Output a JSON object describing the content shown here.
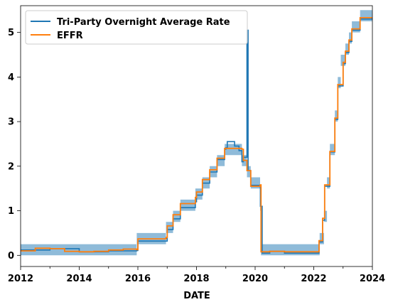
{
  "chart_data": {
    "type": "line",
    "title": "",
    "xlabel": "DATE",
    "ylabel": "",
    "xlim": [
      2012,
      2024
    ],
    "ylim": [
      -0.25,
      5.6
    ],
    "x_ticks": [
      2012,
      2014,
      2016,
      2018,
      2020,
      2022,
      2024
    ],
    "x_tick_labels": [
      "2012",
      "2014",
      "2016",
      "2018",
      "2020",
      "2022",
      "2024"
    ],
    "y_ticks": [
      0,
      1,
      2,
      3,
      4,
      5
    ],
    "y_tick_labels": [
      "0",
      "1",
      "2",
      "3",
      "4",
      "5"
    ],
    "grid": false,
    "legend_position": "top-left",
    "series": [
      {
        "name": "Tri-Party Overnight Average Rate",
        "color": "#1f77b4",
        "x": [
          2012.0,
          2013.0,
          2014.0,
          2015.0,
          2015.96,
          2016.0,
          2016.96,
          2017.0,
          2017.2,
          2017.45,
          2017.96,
          2018.0,
          2018.2,
          2018.45,
          2018.7,
          2018.96,
          2019.0,
          2019.05,
          2019.3,
          2019.45,
          2019.55,
          2019.6,
          2019.72,
          2019.76,
          2019.85,
          2020.17,
          2020.18,
          2020.24,
          2020.5,
          2021.0,
          2021.5,
          2022.15,
          2022.18,
          2022.3,
          2022.37,
          2022.45,
          2022.55,
          2022.62,
          2022.72,
          2022.82,
          2022.92,
          2023.0,
          2023.08,
          2023.2,
          2023.3,
          2023.4,
          2023.58,
          2023.99
        ],
        "y": [
          0.12,
          0.15,
          0.08,
          0.1,
          0.11,
          0.32,
          0.32,
          0.58,
          0.82,
          1.07,
          1.2,
          1.35,
          1.62,
          1.87,
          2.15,
          2.38,
          2.41,
          2.55,
          2.45,
          2.35,
          2.1,
          2.2,
          5.05,
          1.9,
          1.57,
          1.57,
          1.1,
          0.05,
          0.09,
          0.05,
          0.05,
          0.05,
          0.3,
          0.79,
          1.55,
          1.55,
          2.32,
          2.32,
          3.05,
          3.8,
          3.8,
          4.3,
          4.55,
          4.8,
          5.05,
          5.05,
          5.3,
          5.31
        ]
      },
      {
        "name": "EFFR",
        "color": "#ff7f0e",
        "x": [
          2012.0,
          2012.5,
          2013.0,
          2013.5,
          2014.0,
          2014.5,
          2015.0,
          2015.5,
          2015.96,
          2016.0,
          2016.96,
          2017.0,
          2017.2,
          2017.45,
          2017.96,
          2018.0,
          2018.2,
          2018.45,
          2018.7,
          2018.96,
          2019.0,
          2019.55,
          2019.6,
          2019.72,
          2019.85,
          2020.17,
          2020.2,
          2020.5,
          2021.0,
          2021.5,
          2022.15,
          2022.18,
          2022.3,
          2022.37,
          2022.45,
          2022.55,
          2022.62,
          2022.72,
          2022.82,
          2022.92,
          2023.0,
          2023.08,
          2023.2,
          2023.3,
          2023.4,
          2023.58,
          2023.99
        ],
        "y": [
          0.1,
          0.16,
          0.15,
          0.09,
          0.08,
          0.09,
          0.12,
          0.14,
          0.13,
          0.37,
          0.4,
          0.66,
          0.91,
          1.16,
          1.3,
          1.42,
          1.7,
          1.92,
          2.18,
          2.4,
          2.4,
          2.38,
          2.13,
          1.9,
          1.55,
          1.58,
          0.08,
          0.09,
          0.08,
          0.08,
          0.08,
          0.33,
          0.83,
          1.58,
          1.58,
          2.33,
          2.33,
          3.08,
          3.83,
          3.83,
          4.33,
          4.58,
          4.83,
          5.08,
          5.08,
          5.33,
          5.33
        ]
      }
    ],
    "target_range_band": {
      "color": "#1f77b4",
      "opacity": 0.5,
      "x": [
        2012.0,
        2015.96,
        2016.96,
        2017.2,
        2017.45,
        2017.96,
        2018.2,
        2018.45,
        2018.7,
        2018.96,
        2019.55,
        2019.72,
        2019.85,
        2020.17,
        2020.2,
        2022.2,
        2022.35,
        2022.45,
        2022.55,
        2022.72,
        2022.82,
        2022.92,
        2023.08,
        2023.2,
        2023.3,
        2023.58,
        2023.99
      ],
      "lower": [
        0.0,
        0.25,
        0.5,
        0.75,
        1.0,
        1.25,
        1.5,
        1.75,
        2.0,
        2.25,
        2.0,
        1.75,
        1.5,
        1.0,
        0.0,
        0.25,
        0.75,
        1.5,
        2.25,
        3.0,
        3.75,
        4.25,
        4.5,
        4.75,
        5.0,
        5.25,
        5.25
      ],
      "upper": [
        0.25,
        0.5,
        0.75,
        1.0,
        1.25,
        1.5,
        1.75,
        2.0,
        2.25,
        2.5,
        2.25,
        2.0,
        1.75,
        1.25,
        0.25,
        0.5,
        1.0,
        1.75,
        2.5,
        3.25,
        4.0,
        4.5,
        4.75,
        5.0,
        5.25,
        5.5,
        5.5
      ]
    }
  }
}
